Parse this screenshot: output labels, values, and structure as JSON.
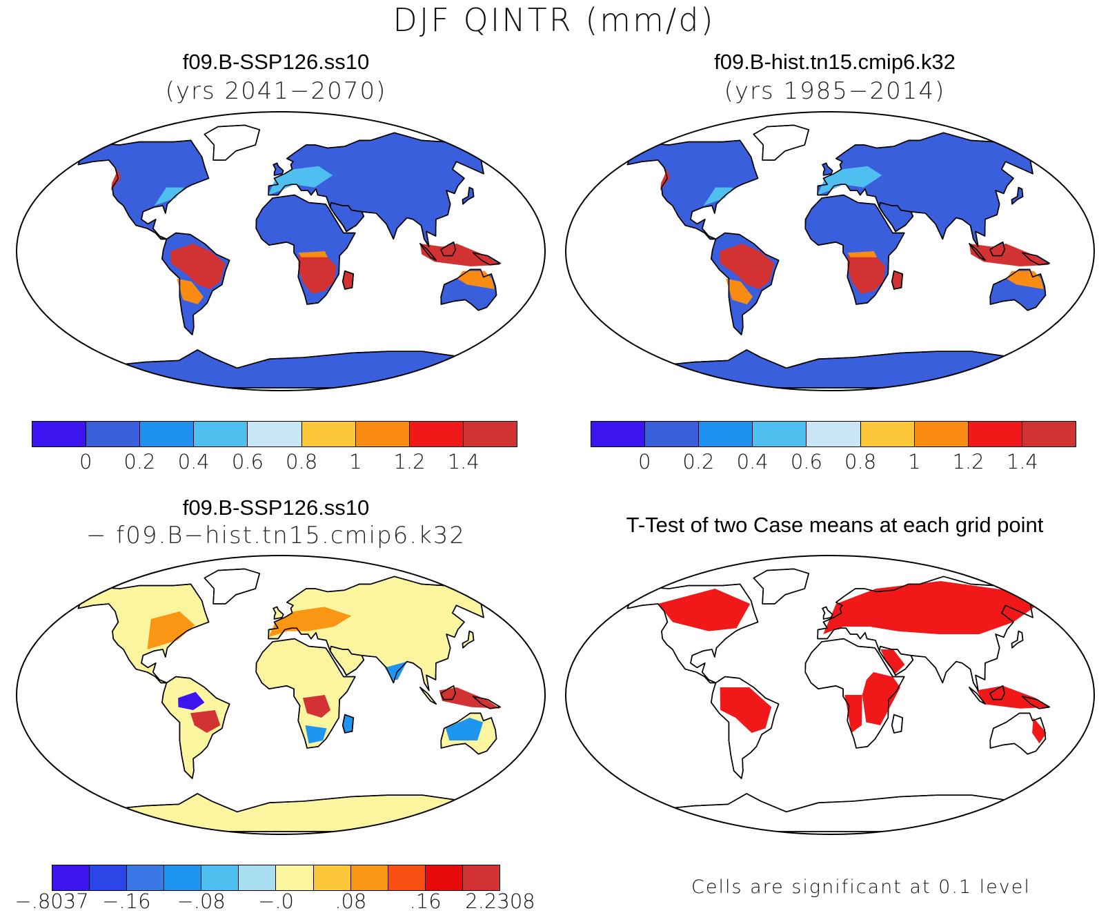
{
  "main_title": "DJF QINTR (mm/d)",
  "panels": {
    "p1": {
      "title": "f09.B-SSP126.ss10",
      "subtitle": "(yrs 2041−2070)"
    },
    "p2": {
      "title": "f09.B-hist.tn15.cmip6.k32",
      "subtitle": "(yrs 1985−2014)"
    },
    "p3": {
      "title": "f09.B-SSP126.ss10",
      "subtitle": "− f09.B−hist.tn15.cmip6.k32"
    },
    "p4": {
      "title": "T-Test of two Case means at each grid point",
      "note": "Cells are significant at 0.1 level"
    }
  },
  "colorbar_abs": {
    "colors": [
      "#3b14f0",
      "#3a5fdc",
      "#1e90f0",
      "#4fbff0",
      "#c8e6f6",
      "#fcc83a",
      "#fa8c14",
      "#f01818",
      "#d23232"
    ],
    "ticks": [
      "0",
      "0.2",
      "0.4",
      "0.6",
      "0.8",
      "1",
      "1.2",
      "1.4"
    ]
  },
  "colorbar_diff": {
    "colors": [
      "#3b14f0",
      "#2a46e6",
      "#3a78e6",
      "#1e96f0",
      "#4fbff0",
      "#a8dcf0",
      "#fcf5a0",
      "#fcc83a",
      "#fa9614",
      "#fa5014",
      "#e60a0a",
      "#d23232"
    ],
    "ticks": [
      "−.8037",
      "−.16",
      "−.08",
      "−.0",
      ".08",
      ".16",
      "2.2308"
    ]
  },
  "map_colors": {
    "ocean": "#ffffff",
    "land_low": "#3a5fdc",
    "land_mid": "#4fbff0",
    "land_high": "#d23232",
    "land_orange": "#fa8c14",
    "diff_base": "#fcf5a0",
    "diff_pos": "#fa9614",
    "diff_high": "#d23232",
    "diff_neg": "#1e96f0",
    "diff_vneg": "#3b14f0",
    "sig": "#f01818"
  }
}
